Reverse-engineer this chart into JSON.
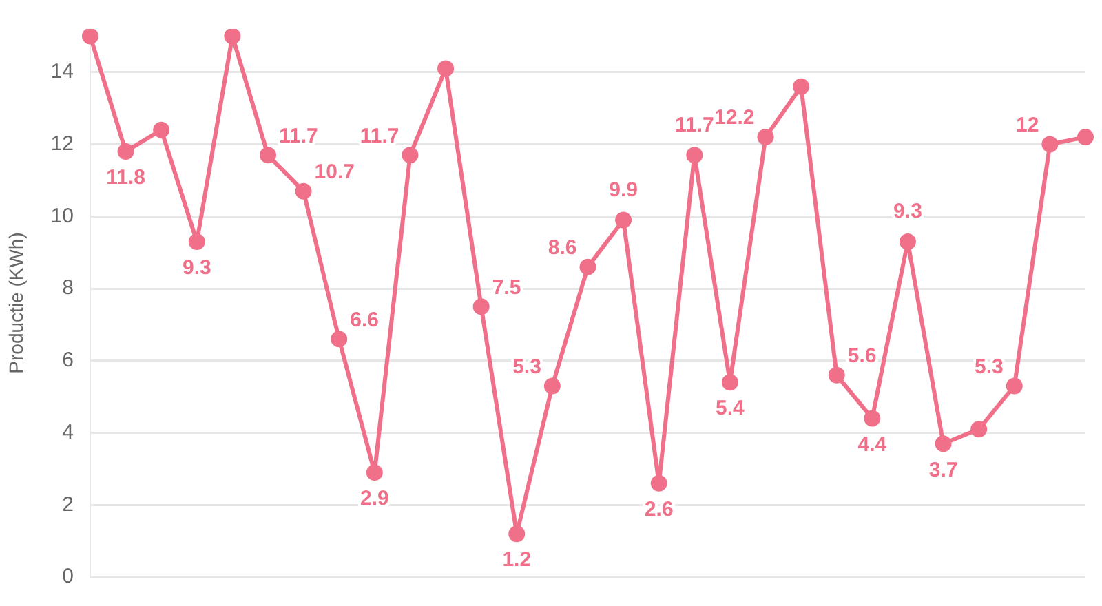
{
  "chart_data": {
    "type": "line",
    "ylabel": "Productie (KWh)",
    "categories": [
      null,
      null,
      null,
      null,
      null,
      null,
      null,
      null,
      null,
      null,
      null,
      null,
      null,
      null,
      null,
      null,
      null,
      null,
      null,
      null,
      null,
      null,
      null,
      null,
      null,
      null,
      null,
      null,
      null
    ],
    "series": [
      {
        "color": "#f0708a",
        "values": [
          15,
          11.8,
          12.4,
          9.3,
          15,
          11.7,
          10.7,
          6.6,
          2.9,
          11.7,
          14.1,
          7.5,
          1.2,
          5.3,
          8.6,
          9.9,
          2.6,
          11.7,
          5.4,
          12.2,
          13.6,
          5.6,
          4.4,
          9.3,
          3.7,
          4.1,
          5.3,
          12,
          12.2
        ],
        "value_labels": [
          null,
          "11.8",
          null,
          "9.3",
          null,
          "11.7",
          "10.7",
          "6.6",
          "2.9",
          "11.7",
          null,
          "7.5",
          "1.2",
          "5.3",
          "8.6",
          "9.9",
          "2.6",
          "11.7",
          "5.4",
          "12.2",
          null,
          "5.6",
          "4.4",
          "9.3",
          "3.7",
          null,
          "5.3",
          "12",
          null
        ]
      }
    ],
    "ylim": [
      0,
      15.2
    ],
    "yticks": [
      0,
      2,
      4,
      6,
      8,
      10,
      12,
      14
    ],
    "grid": "y",
    "legend": false,
    "tick_labels": "y",
    "marker": "circle",
    "line_style": "solid"
  }
}
